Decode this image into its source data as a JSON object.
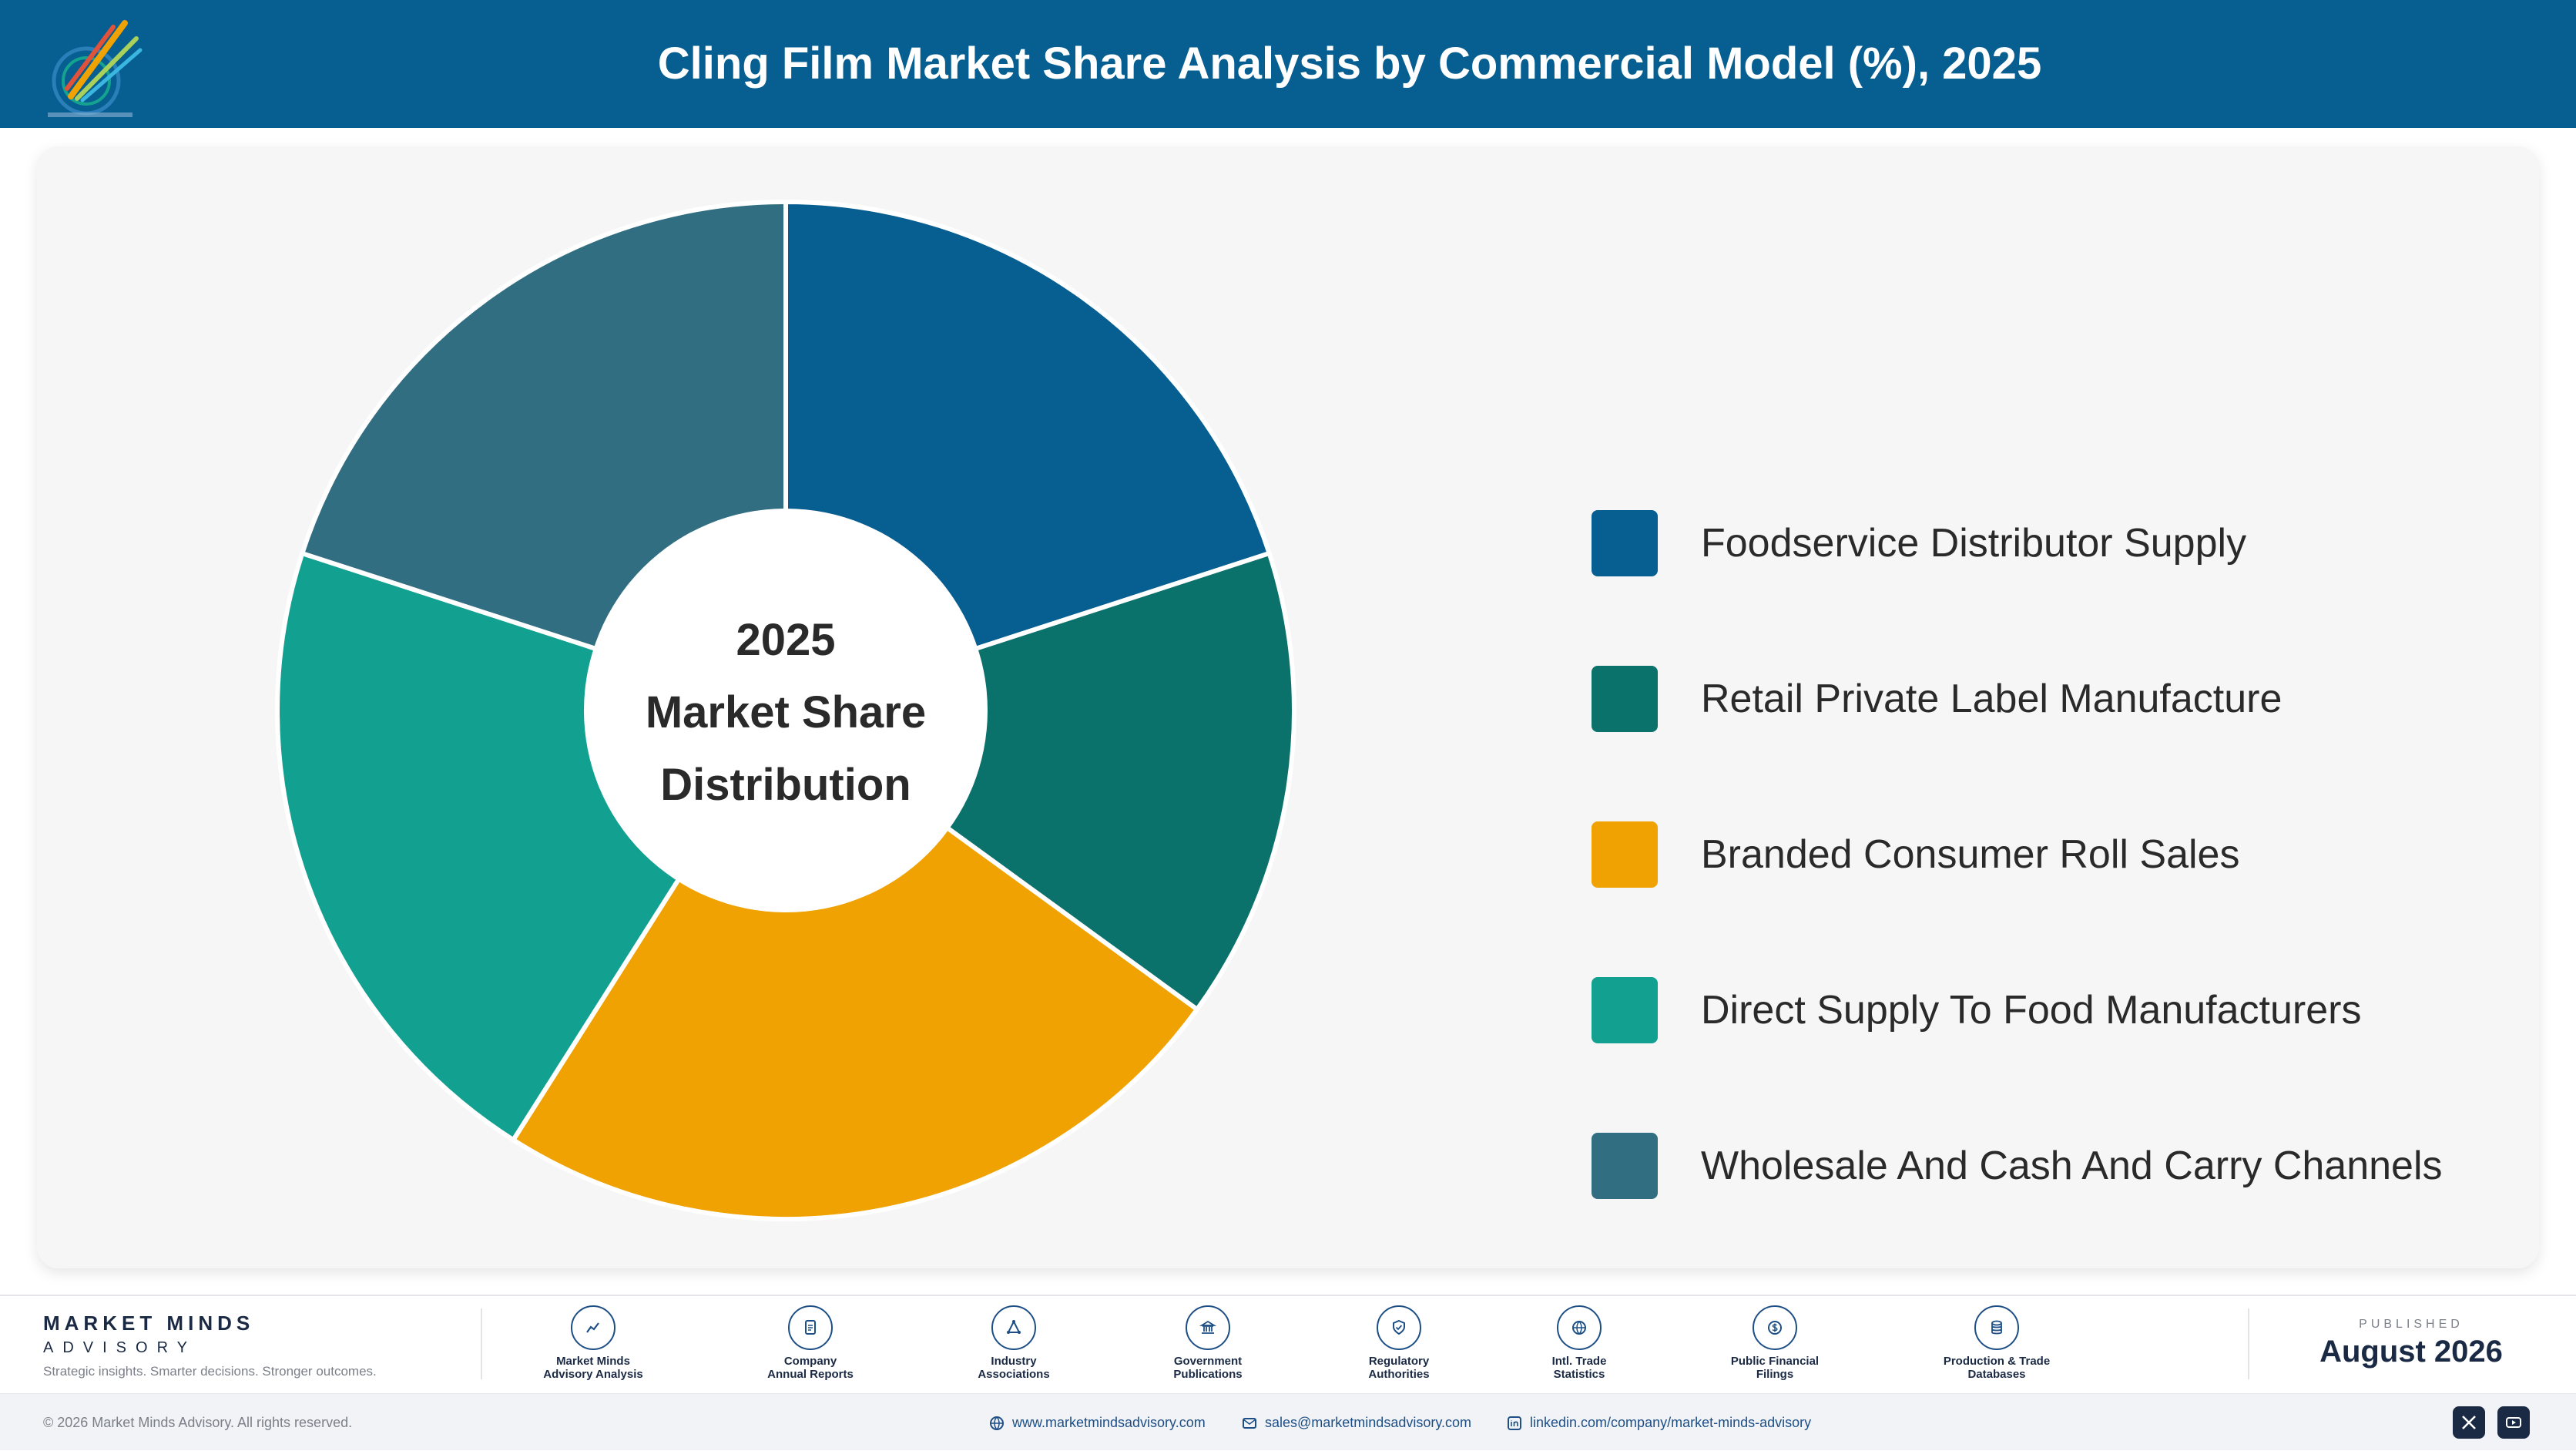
{
  "header": {
    "title": "Cling Film Market Share Analysis by Commercial Model (%), 2025"
  },
  "chart_data": {
    "type": "pie",
    "title": "Cling Film Market Share Analysis by Commercial Model (%), 2025",
    "center_label": [
      "2025",
      "Market Share",
      "Distribution"
    ],
    "categories": [
      "Foodservice Distributor Supply",
      "Retail Private Label Manufacture",
      "Branded Consumer Roll Sales",
      "Direct Supply To Food Manufacturers",
      "Wholesale And Cash And Carry Channels"
    ],
    "values": [
      20,
      15,
      24,
      21,
      20
    ],
    "colors": [
      "#075e91",
      "#0b716b",
      "#f0a202",
      "#12a191",
      "#316e82"
    ],
    "legend_position": "right",
    "donut": true
  },
  "footer": {
    "brand_name": "MARKET MINDS",
    "brand_sub": "ADVISORY",
    "tagline": "Strategic insights. Smarter decisions. Stronger outcomes.",
    "sources": [
      {
        "line1": "Market Minds",
        "line2": "Advisory Analysis",
        "icon": "trend-chart-icon"
      },
      {
        "line1": "Company",
        "line2": "Annual Reports",
        "icon": "document-icon"
      },
      {
        "line1": "Industry",
        "line2": "Associations",
        "icon": "network-icon"
      },
      {
        "line1": "Government",
        "line2": "Publications",
        "icon": "government-building-icon"
      },
      {
        "line1": "Regulatory",
        "line2": "Authorities",
        "icon": "shield-check-icon"
      },
      {
        "line1": "Intl. Trade",
        "line2": "Statistics",
        "icon": "globe-icon"
      },
      {
        "line1": "Public Financial",
        "line2": "Filings",
        "icon": "currency-icon"
      },
      {
        "line1": "Production & Trade",
        "line2": "Databases",
        "icon": "database-icon"
      }
    ],
    "published_label": "PUBLISHED",
    "published_date": "August 2026",
    "copyright": "© 2026 Market Minds Advisory. All rights reserved.",
    "website": "www.marketmindsadvisory.com",
    "email": "sales@marketmindsadvisory.com",
    "linkedin": "linkedin.com/company/market-minds-advisory"
  }
}
